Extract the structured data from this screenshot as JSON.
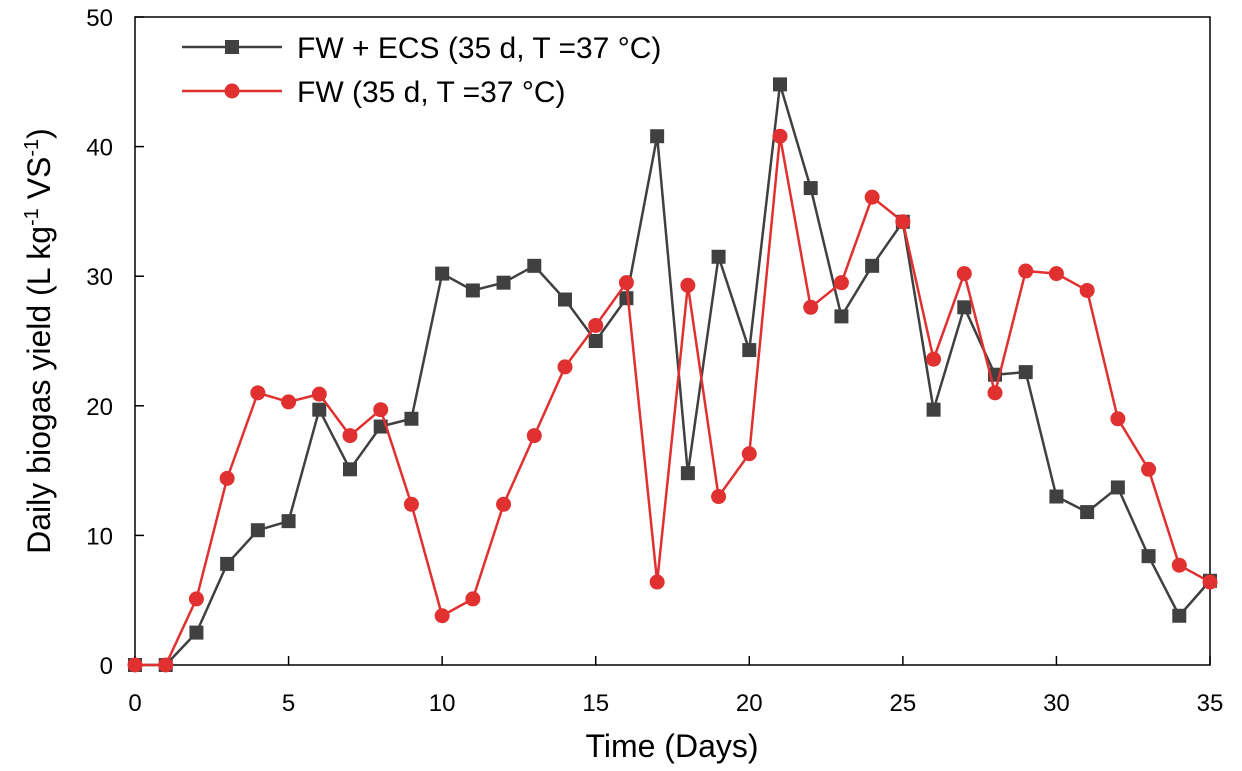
{
  "chart_data": {
    "type": "line",
    "xlabel": "Time (Days)",
    "ylabel": {
      "parts": [
        "Daily biogas yield (L kg",
        "-1",
        " VS",
        "-1",
        ")"
      ]
    },
    "xlim": [
      0,
      35
    ],
    "ylim": [
      0,
      50
    ],
    "xticks": [
      0,
      5,
      10,
      15,
      20,
      25,
      30,
      35
    ],
    "yticks": [
      0,
      10,
      20,
      30,
      40,
      50
    ],
    "grid": false,
    "legend_position": "top-left",
    "x": [
      0,
      1,
      2,
      3,
      4,
      5,
      6,
      7,
      8,
      9,
      10,
      11,
      12,
      13,
      14,
      15,
      16,
      17,
      18,
      19,
      20,
      21,
      22,
      23,
      24,
      25,
      26,
      27,
      28,
      29,
      30,
      31,
      32,
      33,
      34,
      35
    ],
    "series": [
      {
        "name": "FW + ECS (35 d, T =37 °C)",
        "color": "#404040",
        "marker": "square",
        "values": [
          0,
          0,
          2.5,
          7.8,
          10.4,
          11.1,
          19.7,
          15.1,
          18.4,
          19.0,
          30.2,
          28.9,
          29.5,
          30.8,
          28.2,
          25.0,
          28.3,
          40.8,
          14.8,
          31.5,
          24.3,
          44.8,
          36.8,
          26.9,
          30.8,
          34.2,
          19.7,
          27.6,
          22.4,
          22.6,
          13.0,
          11.8,
          13.7,
          8.4,
          3.8,
          6.5
        ]
      },
      {
        "name": "FW  (35 d, T =37 °C)",
        "color": "#e03030",
        "marker": "circle",
        "values": [
          0,
          0,
          5.1,
          14.4,
          21.0,
          20.3,
          20.9,
          17.7,
          19.7,
          12.4,
          3.8,
          5.1,
          12.4,
          17.7,
          23.0,
          26.2,
          29.5,
          6.4,
          29.3,
          13.0,
          16.3,
          40.8,
          27.6,
          29.5,
          36.1,
          34.2,
          23.6,
          30.2,
          21.0,
          30.4,
          30.2,
          28.9,
          19.0,
          15.1,
          7.7,
          6.4
        ]
      }
    ]
  }
}
